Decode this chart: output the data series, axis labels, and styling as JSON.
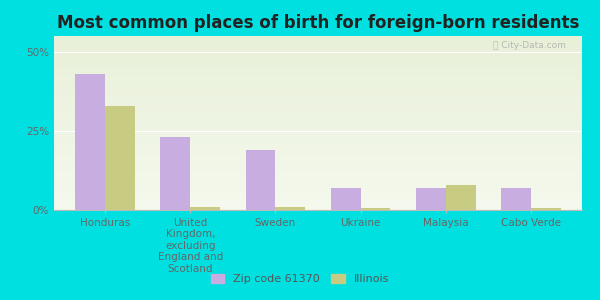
{
  "title": "Most common places of birth for foreign-born residents",
  "categories": [
    "Honduras",
    "United\nKingdom,\nexcluding\nEngland and\nScotland",
    "Sweden",
    "Ukraine",
    "Malaysia",
    "Cabo Verde"
  ],
  "zip_values": [
    43,
    23,
    19,
    7,
    7,
    7
  ],
  "illinois_values": [
    33,
    1,
    1,
    0.5,
    8,
    0.5
  ],
  "zip_color": "#c8aee0",
  "illinois_color": "#c8cc82",
  "bar_width": 0.35,
  "ylim": [
    0,
    55
  ],
  "yticks": [
    0,
    25,
    50
  ],
  "ytick_labels": [
    "0%",
    "25%",
    "50%"
  ],
  "bg_top_color": "#f5f9ee",
  "bg_bottom_color": "#ddeedd",
  "outer_bg": "#00e0e0",
  "legend_zip": "Zip code 61370",
  "legend_illinois": "Illinois",
  "title_fontsize": 12,
  "axis_label_fontsize": 7.5,
  "legend_fontsize": 8
}
